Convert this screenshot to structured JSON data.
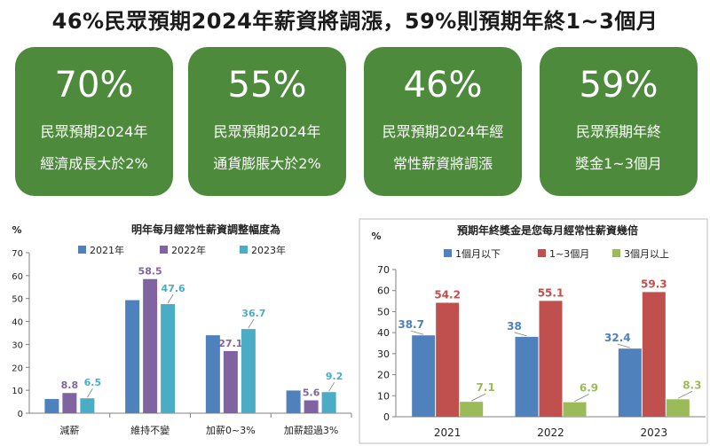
{
  "title": "46%民眾預期2024年薪資將調漲，59%則預期年終1~3個月",
  "cards": [
    {
      "value": "70%",
      "line1": "民眾預期2024年",
      "line2": "經濟成長大於2%"
    },
    {
      "value": "55%",
      "line1": "民眾預期2024年",
      "line2": "通貨膨脹大於2%"
    },
    {
      "value": "46%",
      "line1": "民眾預期2024年經",
      "line2": "常性薪資將調漲"
    },
    {
      "value": "59%",
      "line1": "民眾預期年終",
      "line2": "獎金1~3個月"
    }
  ],
  "colors": {
    "card": "#4d8a3c",
    "blue": "#4f81bd",
    "purple": "#8064a2",
    "teal": "#4bacc6",
    "red": "#c0504d",
    "green": "#9bbb59"
  },
  "chart_data": [
    {
      "type": "bar",
      "title": "明年每月經常性薪資調整幅度為",
      "ylabel": "%",
      "ylim": [
        0,
        70
      ],
      "yticks": [
        0,
        10,
        20,
        30,
        40,
        50,
        60,
        70
      ],
      "categories": [
        "減薪",
        "維持不變",
        "加薪0~3%",
        "加薪超過3%"
      ],
      "legend_position": "top",
      "series": [
        {
          "name": "2021年",
          "color": "#4f81bd",
          "values": [
            6.2,
            49.3,
            34.0,
            9.9
          ],
          "labels": [
            "",
            "",
            "",
            ""
          ]
        },
        {
          "name": "2022年",
          "color": "#8064a2",
          "values": [
            8.8,
            58.5,
            27.1,
            5.6
          ],
          "labels": [
            "8.8",
            "58.5",
            "27.1",
            "5.6"
          ]
        },
        {
          "name": "2023年",
          "color": "#4bacc6",
          "values": [
            6.5,
            47.6,
            36.7,
            9.2
          ],
          "labels": [
            "6.5",
            "47.6",
            "36.7",
            "9.2"
          ]
        }
      ]
    },
    {
      "type": "bar",
      "title": "預期年終獎金是您每月經常性薪資幾倍",
      "ylabel": "%",
      "ylim": [
        0,
        70
      ],
      "yticks": [
        0,
        10,
        20,
        30,
        40,
        50,
        60,
        70
      ],
      "categories": [
        "2021",
        "2022",
        "2023"
      ],
      "legend_position": "top",
      "series": [
        {
          "name": "1個月以下",
          "color": "#4f81bd",
          "values": [
            38.7,
            38,
            32.4
          ],
          "labels": [
            "38.7",
            "38",
            "32.4"
          ]
        },
        {
          "name": "1~3個月",
          "color": "#c0504d",
          "values": [
            54.2,
            55.1,
            59.3
          ],
          "labels": [
            "54.2",
            "55.1",
            "59.3"
          ]
        },
        {
          "name": "3個月以上",
          "color": "#9bbb59",
          "values": [
            7.1,
            6.9,
            8.3
          ],
          "labels": [
            "7.1",
            "6.9",
            "8.3"
          ]
        }
      ]
    }
  ]
}
